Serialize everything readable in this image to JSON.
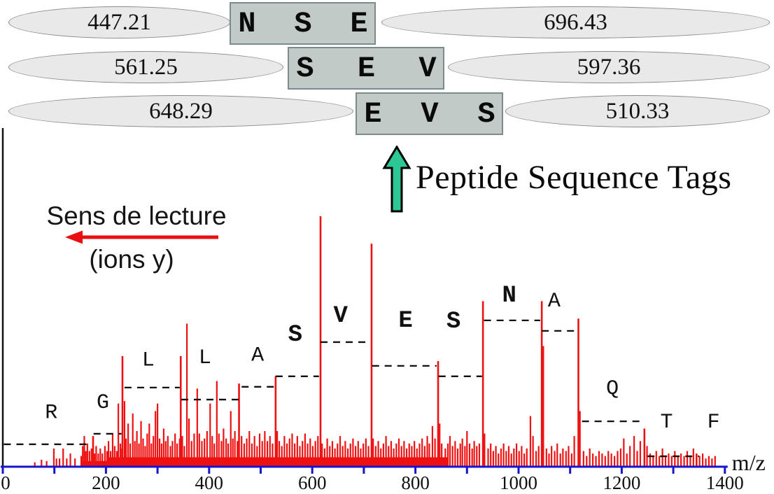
{
  "top_tags": {
    "arrow_caption": "Peptide Sequence Tags",
    "rows": [
      {
        "left_mass": "447.21",
        "letters": [
          "N",
          "S",
          "E"
        ],
        "right_mass": "696.43"
      },
      {
        "left_mass": "561.25",
        "letters": [
          "S",
          "E",
          "V"
        ],
        "right_mass": "597.36"
      },
      {
        "left_mass": "648.29",
        "letters": [
          "E",
          "V",
          "S"
        ],
        "right_mass": "510.33"
      }
    ]
  },
  "reading_direction": {
    "title": "Sens de lecture",
    "subtitle": "(ions y)"
  },
  "colors": {
    "peak_red": "#ee1111",
    "axis_blue": "#1515ce",
    "dash_black": "#111111",
    "arrow_green": "#2cc795",
    "arrow_red": "#e81010",
    "box_fill": "#c2cac7",
    "box_border": "#7d8a8a",
    "ellipse_fill": "#e9e9e9",
    "ellipse_border": "#8a8a8a"
  },
  "chart_data": {
    "type": "bar",
    "subtype": "ms2-mass-spectrum",
    "xlabel": "m/z",
    "x_range": [
      0,
      1400
    ],
    "ylim": [
      0,
      100
    ],
    "grid": false,
    "legend": "none",
    "x_ticks": [
      {
        "mz": 0,
        "label": "0"
      },
      {
        "mz": 100,
        "label": ""
      },
      {
        "mz": 200,
        "label": "200"
      },
      {
        "mz": 300,
        "label": ""
      },
      {
        "mz": 400,
        "label": "400"
      },
      {
        "mz": 500,
        "label": ""
      },
      {
        "mz": 600,
        "label": "600"
      },
      {
        "mz": 700,
        "label": ""
      },
      {
        "mz": 800,
        "label": "800"
      },
      {
        "mz": 900,
        "label": ""
      },
      {
        "mz": 1000,
        "label": "1000"
      },
      {
        "mz": 1100,
        "label": ""
      },
      {
        "mz": 1200,
        "label": "1200"
      },
      {
        "mz": 1300,
        "label": ""
      },
      {
        "mz": 1400,
        "label": "1400"
      }
    ],
    "ion_ladder": [
      {
        "residue": "R",
        "bold": false,
        "mz": 175,
        "intensity": 12,
        "step": [
          2,
          171
        ],
        "step_level": 8.7,
        "label_mz": 94,
        "label_level": 22
      },
      {
        "residue": "G",
        "bold": false,
        "mz": 232,
        "intensity": 44,
        "step": [
          176,
          230
        ],
        "step_level": 12.9,
        "label_mz": 194,
        "label_level": 26
      },
      {
        "residue": "L",
        "bold": false,
        "mz": 345,
        "intensity": 44,
        "step": [
          236,
          343
        ],
        "step_level": 31.4,
        "label_mz": 282,
        "label_level": 43
      },
      {
        "residue": "L",
        "bold": false,
        "mz": 458,
        "intensity": 33,
        "step": [
          346,
          460
        ],
        "step_level": 26.6,
        "label_mz": 392,
        "label_level": 44
      },
      {
        "residue": "A",
        "bold": false,
        "mz": 529,
        "intensity": 36,
        "step": [
          463,
          526
        ],
        "step_level": 31.7,
        "label_mz": 494,
        "label_level": 45
      },
      {
        "residue": "S",
        "bold": true,
        "mz": 616,
        "intensity": 100,
        "step": [
          529,
          613
        ],
        "step_level": 35.9,
        "label_mz": 567,
        "label_level": 53
      },
      {
        "residue": "V",
        "bold": true,
        "mz": 715,
        "intensity": 89,
        "step": [
          616,
          712
        ],
        "step_level": 49.6,
        "label_mz": 655,
        "label_level": 60.5
      },
      {
        "residue": "E",
        "bold": true,
        "mz": 844,
        "intensity": 42,
        "step": [
          716,
          841
        ],
        "step_level": 40.1,
        "label_mz": 781,
        "label_level": 58.5
      },
      {
        "residue": "S",
        "bold": true,
        "mz": 931,
        "intensity": 66,
        "step": [
          845,
          929
        ],
        "step_level": 35.9,
        "label_mz": 874,
        "label_level": 58.3
      },
      {
        "residue": "N",
        "bold": true,
        "mz": 1045,
        "intensity": 66,
        "step": [
          933,
          1042
        ],
        "step_level": 58.3,
        "label_mz": 982,
        "label_level": 68.6
      },
      {
        "residue": "A",
        "bold": false,
        "mz": 1116,
        "intensity": 59,
        "step": [
          1045,
          1113
        ],
        "step_level": 54.1,
        "label_mz": 1069,
        "label_level": 66.7
      },
      {
        "residue": "Q",
        "bold": false,
        "mz": 1244,
        "intensity": 15,
        "step": [
          1123,
          1244
        ],
        "step_level": 17.9,
        "label_mz": 1182,
        "label_level": 31.7
      },
      {
        "residue": "T",
        "bold": false,
        "mz": 1345,
        "intensity": 5,
        "step": [
          1250,
          1350
        ],
        "step_level": 3.9,
        "label_mz": 1287,
        "label_level": 18.2
      },
      {
        "residue": "F",
        "bold": false,
        "mz": null,
        "intensity": null,
        "step": null,
        "step_level": null,
        "label_mz": 1378,
        "label_level": 18.2
      }
    ],
    "noise_bands": [
      [
        152,
        205,
        2
      ],
      [
        205,
        862,
        3.5
      ]
    ],
    "noise_peaks": [
      [
        62,
        1.5
      ],
      [
        75,
        2.5
      ],
      [
        85,
        2
      ],
      [
        99,
        7
      ],
      [
        104,
        3
      ],
      [
        110,
        3
      ],
      [
        117,
        7
      ],
      [
        124,
        3
      ],
      [
        131,
        5
      ],
      [
        140,
        3
      ],
      [
        152,
        4
      ],
      [
        155,
        8
      ],
      [
        158,
        12
      ],
      [
        161,
        6
      ],
      [
        164,
        9
      ],
      [
        168,
        6
      ],
      [
        172,
        7
      ],
      [
        178,
        5
      ],
      [
        181,
        8
      ],
      [
        185,
        5
      ],
      [
        189,
        7
      ],
      [
        193,
        5
      ],
      [
        198,
        8
      ],
      [
        202,
        6
      ],
      [
        205,
        10
      ],
      [
        209,
        6
      ],
      [
        213,
        13
      ],
      [
        217,
        8
      ],
      [
        221,
        6
      ],
      [
        224,
        25
      ],
      [
        228,
        9
      ],
      [
        231,
        7
      ],
      [
        236,
        26
      ],
      [
        239,
        11
      ],
      [
        243,
        17
      ],
      [
        247,
        9
      ],
      [
        252,
        21
      ],
      [
        256,
        10
      ],
      [
        260,
        14
      ],
      [
        264,
        9
      ],
      [
        268,
        18
      ],
      [
        272,
        11
      ],
      [
        276,
        8
      ],
      [
        280,
        13
      ],
      [
        284,
        17
      ],
      [
        288,
        9
      ],
      [
        292,
        12
      ],
      [
        296,
        22
      ],
      [
        300,
        25
      ],
      [
        304,
        11
      ],
      [
        308,
        9
      ],
      [
        312,
        15
      ],
      [
        316,
        10
      ],
      [
        320,
        12
      ],
      [
        325,
        8
      ],
      [
        329,
        10
      ],
      [
        334,
        13
      ],
      [
        338,
        9
      ],
      [
        343,
        11
      ],
      [
        348,
        12
      ],
      [
        352,
        8
      ],
      [
        357,
        57
      ],
      [
        361,
        19
      ],
      [
        366,
        10
      ],
      [
        371,
        13
      ],
      [
        377,
        31
      ],
      [
        381,
        13
      ],
      [
        386,
        10
      ],
      [
        391,
        11
      ],
      [
        396,
        14
      ],
      [
        402,
        25
      ],
      [
        406,
        12
      ],
      [
        410,
        9
      ],
      [
        415,
        34
      ],
      [
        419,
        13
      ],
      [
        424,
        10
      ],
      [
        428,
        15
      ],
      [
        433,
        11
      ],
      [
        437,
        9
      ],
      [
        442,
        22
      ],
      [
        446,
        11
      ],
      [
        450,
        14
      ],
      [
        455,
        10
      ],
      [
        463,
        12
      ],
      [
        468,
        9
      ],
      [
        473,
        11
      ],
      [
        478,
        14
      ],
      [
        483,
        9
      ],
      [
        488,
        12
      ],
      [
        493,
        8
      ],
      [
        498,
        13
      ],
      [
        503,
        10
      ],
      [
        508,
        14
      ],
      [
        513,
        10
      ],
      [
        518,
        12
      ],
      [
        523,
        9
      ],
      [
        532,
        14
      ],
      [
        536,
        10
      ],
      [
        541,
        8
      ],
      [
        546,
        12
      ],
      [
        551,
        9
      ],
      [
        556,
        11
      ],
      [
        561,
        13
      ],
      [
        566,
        9
      ],
      [
        571,
        12
      ],
      [
        576,
        8
      ],
      [
        581,
        10
      ],
      [
        586,
        13
      ],
      [
        591,
        9
      ],
      [
        596,
        11
      ],
      [
        601,
        8
      ],
      [
        606,
        10
      ],
      [
        611,
        12
      ],
      [
        619,
        9
      ],
      [
        624,
        7
      ],
      [
        629,
        11
      ],
      [
        634,
        8
      ],
      [
        639,
        10
      ],
      [
        644,
        7
      ],
      [
        649,
        9
      ],
      [
        654,
        12
      ],
      [
        659,
        8
      ],
      [
        664,
        10
      ],
      [
        669,
        7
      ],
      [
        674,
        9
      ],
      [
        679,
        11
      ],
      [
        684,
        8
      ],
      [
        689,
        10
      ],
      [
        694,
        7
      ],
      [
        699,
        9
      ],
      [
        704,
        11
      ],
      [
        709,
        8
      ],
      [
        718,
        11
      ],
      [
        723,
        8
      ],
      [
        728,
        10
      ],
      [
        733,
        7
      ],
      [
        738,
        9
      ],
      [
        743,
        12
      ],
      [
        748,
        8
      ],
      [
        753,
        10
      ],
      [
        758,
        7
      ],
      [
        763,
        9
      ],
      [
        768,
        11
      ],
      [
        773,
        8
      ],
      [
        778,
        10
      ],
      [
        783,
        7
      ],
      [
        788,
        9
      ],
      [
        793,
        8
      ],
      [
        798,
        10
      ],
      [
        803,
        7
      ],
      [
        808,
        9
      ],
      [
        813,
        11
      ],
      [
        818,
        8
      ],
      [
        823,
        12
      ],
      [
        827,
        9
      ],
      [
        833,
        16
      ],
      [
        838,
        11
      ],
      [
        847,
        17
      ],
      [
        851,
        9
      ],
      [
        858,
        7
      ],
      [
        863,
        9
      ],
      [
        867,
        12
      ],
      [
        872,
        8
      ],
      [
        877,
        10
      ],
      [
        882,
        7
      ],
      [
        887,
        9
      ],
      [
        891,
        11
      ],
      [
        896,
        8
      ],
      [
        900,
        14
      ],
      [
        905,
        9
      ],
      [
        910,
        7
      ],
      [
        914,
        10
      ],
      [
        919,
        8
      ],
      [
        924,
        9
      ],
      [
        934,
        13
      ],
      [
        941,
        7
      ],
      [
        946,
        9
      ],
      [
        951,
        6
      ],
      [
        956,
        8
      ],
      [
        961,
        5
      ],
      [
        966,
        7
      ],
      [
        971,
        9
      ],
      [
        976,
        6
      ],
      [
        981,
        8
      ],
      [
        986,
        5
      ],
      [
        991,
        7
      ],
      [
        996,
        9
      ],
      [
        1001,
        6
      ],
      [
        1006,
        8
      ],
      [
        1011,
        5
      ],
      [
        1016,
        7
      ],
      [
        1023,
        20
      ],
      [
        1028,
        12
      ],
      [
        1034,
        6
      ],
      [
        1039,
        8
      ],
      [
        1048,
        48
      ],
      [
        1054,
        7
      ],
      [
        1059,
        5
      ],
      [
        1064,
        8
      ],
      [
        1070,
        6
      ],
      [
        1075,
        9
      ],
      [
        1081,
        5
      ],
      [
        1086,
        7
      ],
      [
        1092,
        6
      ],
      [
        1097,
        8
      ],
      [
        1103,
        5
      ],
      [
        1108,
        12
      ],
      [
        1119,
        22
      ],
      [
        1126,
        6
      ],
      [
        1132,
        4
      ],
      [
        1138,
        7
      ],
      [
        1144,
        5
      ],
      [
        1150,
        4
      ],
      [
        1156,
        6
      ],
      [
        1162,
        5
      ],
      [
        1168,
        4
      ],
      [
        1174,
        6
      ],
      [
        1180,
        5
      ],
      [
        1186,
        4
      ],
      [
        1192,
        6
      ],
      [
        1198,
        7
      ],
      [
        1204,
        11
      ],
      [
        1210,
        5
      ],
      [
        1216,
        8
      ],
      [
        1224,
        12
      ],
      [
        1230,
        6
      ],
      [
        1236,
        10
      ],
      [
        1249,
        8
      ],
      [
        1255,
        5
      ],
      [
        1261,
        4
      ],
      [
        1267,
        6
      ],
      [
        1273,
        4
      ],
      [
        1279,
        7
      ],
      [
        1285,
        4
      ],
      [
        1291,
        5
      ],
      [
        1297,
        4
      ],
      [
        1303,
        6
      ],
      [
        1309,
        4
      ],
      [
        1315,
        5
      ],
      [
        1321,
        4
      ],
      [
        1327,
        6
      ],
      [
        1333,
        4
      ],
      [
        1339,
        7
      ],
      [
        1351,
        4
      ],
      [
        1357,
        5
      ],
      [
        1363,
        3
      ],
      [
        1369,
        4
      ],
      [
        1375,
        3
      ],
      [
        1381,
        4
      ]
    ]
  }
}
